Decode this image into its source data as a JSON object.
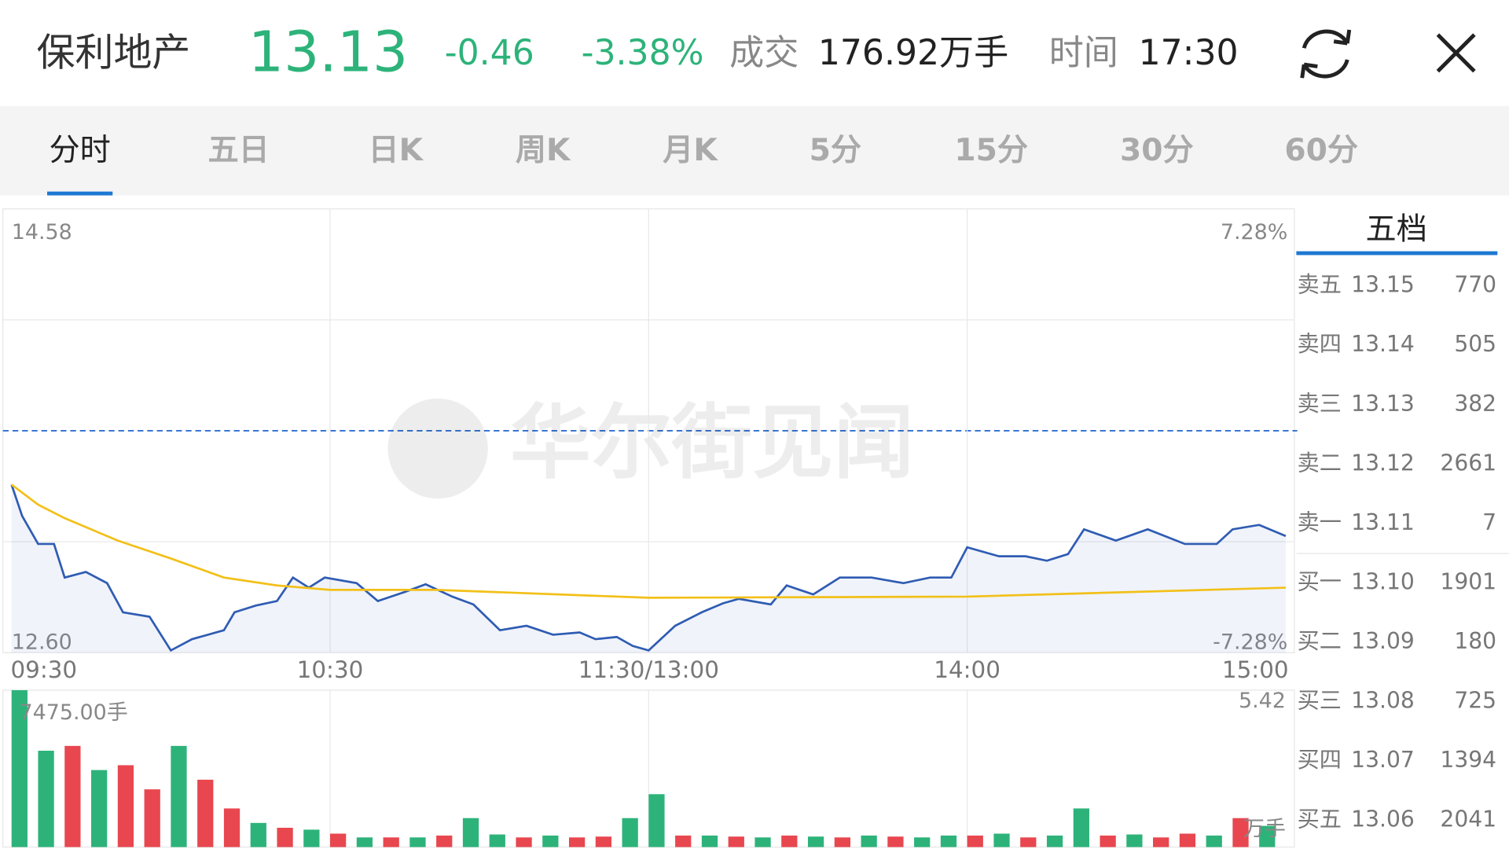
{
  "header": {
    "name": "保利地产",
    "price": "13.13",
    "change": "-0.46",
    "change_pct": "-3.38%",
    "volume_label": "成交",
    "volume": "176.92万手",
    "time_label": "时间",
    "time": "17:30"
  },
  "tabs": {
    "items": [
      "分时",
      "五日",
      "日K",
      "周K",
      "月K",
      "5分",
      "15分",
      "30分",
      "60分"
    ],
    "active": 0
  },
  "watermark": "华尔街见闻",
  "chart_data": [
    {
      "type": "line",
      "xlim": [
        0,
        240
      ],
      "ylim": [
        12.6,
        14.58
      ],
      "yticks": [
        {
          "value": 14.58,
          "label": "14.58"
        },
        {
          "value": 12.6,
          "label": "12.60"
        }
      ],
      "y2lim": [
        -7.28,
        7.28
      ],
      "y2ticks": [
        {
          "value": 7.28,
          "label": "7.28%"
        },
        {
          "value": -7.28,
          "label": "-7.28%"
        }
      ],
      "xticks": [
        {
          "value": 0,
          "label": "09:30"
        },
        {
          "value": 60,
          "label": "10:30"
        },
        {
          "value": 120,
          "label": "11:30/13:00"
        },
        {
          "value": 180,
          "label": "14:00"
        },
        {
          "value": 240,
          "label": "15:00"
        }
      ],
      "series": [
        {
          "color": "#2f5cb3",
          "x": [
            0,
            2,
            5,
            8,
            10,
            14,
            18,
            21,
            26,
            30,
            34,
            40,
            42,
            46,
            50,
            53,
            56,
            59,
            65,
            69,
            74,
            78,
            83,
            87,
            92,
            97,
            102,
            107,
            110,
            114,
            117,
            120,
            125,
            130,
            134,
            137,
            143,
            146,
            151,
            156,
            162,
            168,
            173,
            177,
            180,
            186,
            191,
            195,
            199,
            202,
            208,
            214,
            221,
            227,
            230,
            235,
            240
          ],
          "values": [
            13.35,
            13.21,
            13.085,
            13.085,
            12.935,
            12.96,
            12.91,
            12.78,
            12.76,
            12.61,
            12.66,
            12.7,
            12.78,
            12.81,
            12.83,
            12.935,
            12.89,
            12.935,
            12.91,
            12.83,
            12.87,
            12.905,
            12.85,
            12.815,
            12.7,
            12.72,
            12.68,
            12.69,
            12.66,
            12.67,
            12.63,
            12.61,
            12.72,
            12.78,
            12.82,
            12.84,
            12.815,
            12.9,
            12.86,
            12.935,
            12.935,
            12.91,
            12.935,
            12.935,
            13.07,
            13.03,
            13.03,
            13.01,
            13.04,
            13.15,
            13.1,
            13.15,
            13.085,
            13.085,
            13.15,
            13.17,
            13.12
          ]
        },
        {
          "color": "#f2c018",
          "x": [
            0,
            5,
            10,
            20,
            30,
            40,
            50,
            60,
            80,
            120,
            180,
            240
          ],
          "values": [
            13.35,
            13.26,
            13.2,
            13.1,
            13.02,
            12.935,
            12.9,
            12.88,
            12.88,
            12.845,
            12.85,
            12.89
          ]
        }
      ]
    },
    {
      "type": "bar",
      "xlim": [
        0,
        240
      ],
      "ylim": [
        0,
        7475
      ],
      "yticks": [
        {
          "value": 7475,
          "label": "7475.00手"
        }
      ],
      "right_label": "5.42",
      "unit_label": "万手",
      "x": [
        0,
        5,
        10,
        15,
        20,
        25,
        30,
        35,
        40,
        45,
        50,
        55,
        60,
        65,
        70,
        75,
        80,
        85,
        90,
        95,
        100,
        105,
        110,
        115,
        120,
        125,
        130,
        135,
        140,
        145,
        150,
        155,
        160,
        165,
        170,
        175,
        180,
        185,
        190,
        195,
        200,
        205,
        210,
        215,
        220,
        225,
        230,
        235
      ],
      "values": [
        7475,
        4590,
        4820,
        3670,
        3900,
        2750,
        4820,
        3210,
        1840,
        1150,
        920,
        830,
        640,
        460,
        460,
        460,
        550,
        1380,
        600,
        460,
        550,
        460,
        500,
        1380,
        2520,
        550,
        550,
        500,
        460,
        550,
        500,
        460,
        550,
        500,
        460,
        550,
        550,
        640,
        460,
        550,
        1840,
        550,
        600,
        460,
        640,
        550,
        1380,
        1010
      ],
      "colors": [
        "#2db37a",
        "#2db37a",
        "#e8474f",
        "#2db37a",
        "#e8474f",
        "#e8474f",
        "#2db37a",
        "#e8474f",
        "#e8474f",
        "#2db37a",
        "#e8474f",
        "#2db37a",
        "#e8474f",
        "#2db37a",
        "#e8474f",
        "#2db37a",
        "#e8474f",
        "#2db37a",
        "#2db37a",
        "#e8474f",
        "#2db37a",
        "#e8474f",
        "#e8474f",
        "#2db37a",
        "#2db37a",
        "#e8474f",
        "#2db37a",
        "#e8474f",
        "#2db37a",
        "#e8474f",
        "#2db37a",
        "#e8474f",
        "#2db37a",
        "#e8474f",
        "#2db37a",
        "#2db37a",
        "#e8474f",
        "#2db37a",
        "#e8474f",
        "#2db37a",
        "#2db37a",
        "#e8474f",
        "#2db37a",
        "#e8474f",
        "#e8474f",
        "#2db37a",
        "#e8474f",
        "#2db37a"
      ]
    }
  ],
  "order_book": {
    "title": "五档",
    "rows": [
      [
        "卖五",
        "13.15",
        "770"
      ],
      [
        "卖四",
        "13.14",
        "505"
      ],
      [
        "卖三",
        "13.13",
        "382"
      ],
      [
        "卖二",
        "13.12",
        "2661"
      ],
      [
        "卖一",
        "13.11",
        "7"
      ],
      [
        "买一",
        "13.10",
        "1901"
      ],
      [
        "买二",
        "13.09",
        "180"
      ],
      [
        "买三",
        "13.08",
        "725"
      ],
      [
        "买四",
        "13.07",
        "1394"
      ],
      [
        "买五",
        "13.06",
        "2041"
      ]
    ]
  }
}
